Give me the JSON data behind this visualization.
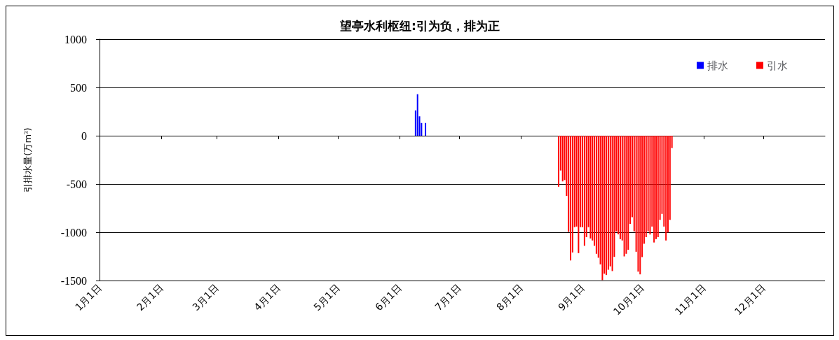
{
  "chart_data": {
    "type": "bar",
    "title": "望亭水利枢纽:引为负，排为正",
    "ylabel": "引排水量(万m$^{3}$)",
    "xlim": [
      "--01-01",
      "--12-31"
    ],
    "xticks": [
      {
        "value": "--01-01",
        "label": "1月1日"
      },
      {
        "value": "--02-01",
        "label": "2月1日"
      },
      {
        "value": "--03-01",
        "label": "3月1日"
      },
      {
        "value": "--04-01",
        "label": "4月1日"
      },
      {
        "value": "--05-01",
        "label": "5月1日"
      },
      {
        "value": "--06-01",
        "label": "6月1日"
      },
      {
        "value": "--07-01",
        "label": "7月1日"
      },
      {
        "value": "--08-01",
        "label": "8月1日"
      },
      {
        "value": "--09-01",
        "label": "9月1日"
      },
      {
        "value": "--10-01",
        "label": "10月1日"
      },
      {
        "value": "--11-01",
        "label": "11月1日"
      },
      {
        "value": "--12-01",
        "label": "12月1日"
      }
    ],
    "ylim": [
      -1500,
      1000
    ],
    "yticks": [
      -1500,
      -1000,
      -500,
      0,
      500,
      1000
    ],
    "grid": "y",
    "legend": "top right",
    "series": [
      {
        "name": "排水",
        "color": "#0000ff",
        "x": [
          "--06-09",
          "--06-10",
          "--06-11",
          "--06-12",
          "--06-14"
        ],
        "values": [
          262,
          430,
          201,
          132,
          132
        ]
      },
      {
        "name": "引水",
        "color": "#ff0000",
        "x": [
          "--08-20",
          "--08-21",
          "--08-22",
          "--08-23",
          "--08-24",
          "--08-25",
          "--08-26",
          "--08-27",
          "--08-28",
          "--08-29",
          "--08-30",
          "--08-31",
          "--09-01",
          "--09-02",
          "--09-03",
          "--09-04",
          "--09-05",
          "--09-06",
          "--09-07",
          "--09-08",
          "--09-09",
          "--09-10",
          "--09-11",
          "--09-12",
          "--09-13",
          "--09-14",
          "--09-15",
          "--09-16",
          "--09-17",
          "--09-18",
          "--09-19",
          "--09-20",
          "--09-21",
          "--09-22",
          "--09-23",
          "--09-24",
          "--09-25",
          "--09-26",
          "--09-27",
          "--09-28",
          "--09-29",
          "--09-30",
          "--10-01",
          "--10-02",
          "--10-03",
          "--10-04",
          "--10-05",
          "--10-06",
          "--10-07",
          "--10-08",
          "--10-09",
          "--10-10",
          "--10-11",
          "--10-12",
          "--10-13",
          "--10-14",
          "--10-15",
          "--10-16"
        ],
        "values": [
          -528,
          -360,
          -473,
          -459,
          -624,
          -996,
          -1292,
          -1209,
          -947,
          -941,
          -1216,
          -947,
          -947,
          -1140,
          -1051,
          -947,
          -1064,
          -1085,
          -1140,
          -1223,
          -1264,
          -1333,
          -1495,
          -1429,
          -1443,
          -1388,
          -1353,
          -1402,
          -1255,
          -991,
          -1021,
          -1071,
          -1085,
          -1250,
          -1223,
          -1181,
          -913,
          -844,
          -991,
          -1202,
          -1408,
          -1436,
          -1257,
          -1119,
          -1051,
          -991,
          -1023,
          -941,
          -1106,
          -1071,
          -1051,
          -872,
          -810,
          -941,
          -1085,
          -1002,
          -872,
          -128
        ]
      }
    ]
  }
}
